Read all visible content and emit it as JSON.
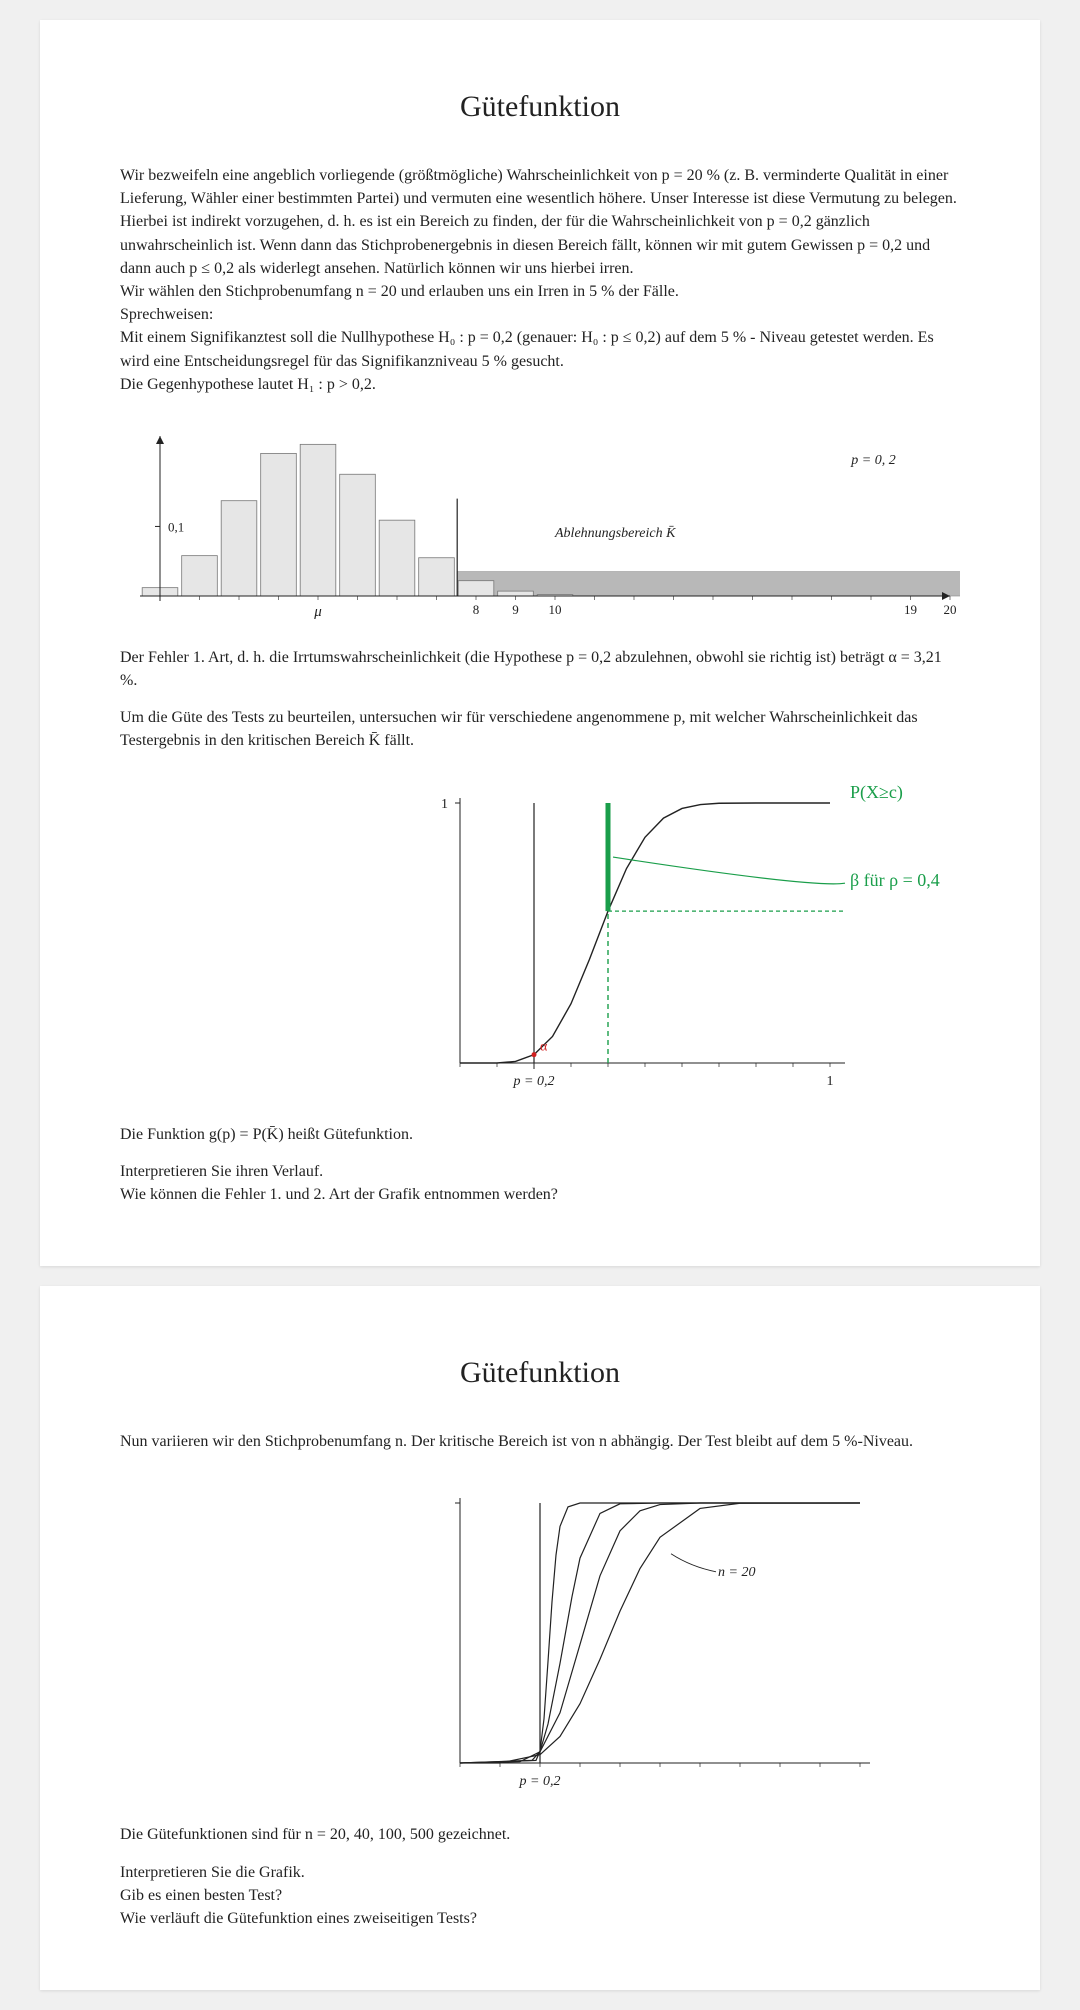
{
  "page1": {
    "title": "Gütefunktion",
    "para1": "Wir bezweifeln eine angeblich vorliegende (größtmögliche) Wahrscheinlichkeit von p = 20 % (z. B. verminderte Qualität in einer Lieferung, Wähler einer bestimmten Partei) und vermuten eine wesentlich höhere. Unser Interesse ist diese Vermutung zu belegen. Hierbei ist indirekt vorzugehen, d. h. es ist ein Bereich zu finden, der für die Wahrscheinlichkeit von p = 0,2 gänzlich unwahrscheinlich ist. Wenn dann das Stichprobenergebnis in diesen Bereich fällt, können wir mit gutem Gewissen p = 0,2 und dann auch p ≤ 0,2 als widerlegt ansehen. Natürlich können wir uns hierbei irren.",
    "para2": "Wir wählen den Stichprobenumfang n = 20 und erlauben uns ein Irren in 5 % der Fälle.",
    "para3": "Sprechweisen:",
    "para4": "Mit einem Signifikanztest soll die Nullhypothese H₀ : p = 0,2 (genauer: H₀ : p ≤ 0,2) auf dem 5 % - Niveau getestet werden. Es wird eine Entscheidungsregel für das Signifikanzniveau 5 % gesucht.",
    "para5": "Die Gegenhypothese lautet H₁ : p > 0,2.",
    "para6": "Der Fehler 1. Art, d. h. die Irrtumswahrscheinlichkeit (die Hypothese p = 0,2 abzulehnen, obwohl sie richtig ist) beträgt α = 3,21 %.",
    "para7": "Um die Güte des Tests zu beurteilen, untersuchen wir für verschiedene angenommene p, mit welcher Wahrscheinlichkeit das Testergebnis in den kritischen Bereich K̄ fällt.",
    "para8": "Die Funktion  g(p)  =  P(K̄)  heißt Gütefunktion.",
    "para9": "Interpretieren Sie ihren Verlauf.",
    "para10": "Wie können die Fehler 1. und 2. Art der Grafik entnommen werden?"
  },
  "histogram": {
    "y_tick_label": "0,1",
    "y_tick_value": 0.1,
    "mu_label": "μ",
    "x_ticks": [
      8,
      9,
      10,
      19,
      20
    ],
    "rejection_label": "Ablehnungsbereich  K̄",
    "p_label": "p = 0, 2",
    "bars": [
      {
        "x": 0,
        "h": 0.012
      },
      {
        "x": 1,
        "h": 0.058
      },
      {
        "x": 2,
        "h": 0.137
      },
      {
        "x": 3,
        "h": 0.205
      },
      {
        "x": 4,
        "h": 0.218
      },
      {
        "x": 5,
        "h": 0.175
      },
      {
        "x": 6,
        "h": 0.109
      },
      {
        "x": 7,
        "h": 0.055
      },
      {
        "x": 8,
        "h": 0.022
      },
      {
        "x": 9,
        "h": 0.007
      },
      {
        "x": 10,
        "h": 0.002
      }
    ],
    "bar_fill": "#e6e6e6",
    "bar_stroke": "#777777",
    "rejection_fill": "#b8b8b8",
    "rejection_stroke": "#888888",
    "axis_color": "#222222",
    "x_range": [
      0,
      20
    ],
    "y_range": [
      0,
      0.23
    ],
    "critical_x": 8,
    "rejection_band_height": 0.035
  },
  "powercurve": {
    "y_top_label": "1",
    "x_p02_label": "p = 0,2",
    "x_1_label": "1",
    "annotation_top": "P(X≥c)",
    "annotation_beta": "β  für  ρ = 0,4",
    "alpha_label": "α",
    "curve_color": "#222222",
    "green_color": "#1a9e4a",
    "red_color": "#d02020",
    "axis_color": "#222222",
    "p0": 0.2,
    "p_beta": 0.4,
    "x_range": [
      0,
      1
    ],
    "curve_points": [
      {
        "p": 0.0,
        "g": 0.0
      },
      {
        "p": 0.05,
        "g": 0.0
      },
      {
        "p": 0.1,
        "g": 0.0
      },
      {
        "p": 0.15,
        "g": 0.006
      },
      {
        "p": 0.2,
        "g": 0.032
      },
      {
        "p": 0.25,
        "g": 0.102
      },
      {
        "p": 0.3,
        "g": 0.228
      },
      {
        "p": 0.35,
        "g": 0.399
      },
      {
        "p": 0.4,
        "g": 0.584
      },
      {
        "p": 0.45,
        "g": 0.748
      },
      {
        "p": 0.5,
        "g": 0.868
      },
      {
        "p": 0.55,
        "g": 0.942
      },
      {
        "p": 0.6,
        "g": 0.979
      },
      {
        "p": 0.65,
        "g": 0.994
      },
      {
        "p": 0.7,
        "g": 0.999
      },
      {
        "p": 0.8,
        "g": 1.0
      },
      {
        "p": 0.9,
        "g": 1.0
      },
      {
        "p": 1.0,
        "g": 1.0
      }
    ]
  },
  "page2": {
    "title": "Gütefunktion",
    "para1": "Nun variieren wir den Stichprobenumfang n. Der kritische Bereich ist von n abhängig. Der Test bleibt auf dem 5 %-Niveau.",
    "para2": "Die Gütefunktionen sind für n = 20, 40, 100, 500  gezeichnet.",
    "para3": "Interpretieren Sie die Grafik.",
    "para4": "Gib es einen besten Test?",
    "para5": "Wie verläuft die Gütefunktion eines zweiseitigen Tests?"
  },
  "multicurve": {
    "n_label": "n = 20",
    "x_p02_label": "p = 0,2",
    "axis_color": "#222222",
    "curve_color": "#222222",
    "p0": 0.2,
    "curves": [
      [
        {
          "p": 0.0,
          "g": 0.0
        },
        {
          "p": 0.1,
          "g": 0.0
        },
        {
          "p": 0.2,
          "g": 0.032
        },
        {
          "p": 0.25,
          "g": 0.102
        },
        {
          "p": 0.3,
          "g": 0.228
        },
        {
          "p": 0.35,
          "g": 0.399
        },
        {
          "p": 0.4,
          "g": 0.584
        },
        {
          "p": 0.45,
          "g": 0.748
        },
        {
          "p": 0.5,
          "g": 0.868
        },
        {
          "p": 0.6,
          "g": 0.979
        },
        {
          "p": 0.7,
          "g": 0.999
        },
        {
          "p": 1.0,
          "g": 1.0
        }
      ],
      [
        {
          "p": 0.0,
          "g": 0.0
        },
        {
          "p": 0.15,
          "g": 0.005
        },
        {
          "p": 0.2,
          "g": 0.043
        },
        {
          "p": 0.25,
          "g": 0.193
        },
        {
          "p": 0.3,
          "g": 0.456
        },
        {
          "p": 0.35,
          "g": 0.72
        },
        {
          "p": 0.4,
          "g": 0.893
        },
        {
          "p": 0.45,
          "g": 0.97
        },
        {
          "p": 0.5,
          "g": 0.994
        },
        {
          "p": 0.6,
          "g": 1.0
        },
        {
          "p": 1.0,
          "g": 1.0
        }
      ],
      [
        {
          "p": 0.0,
          "g": 0.0
        },
        {
          "p": 0.18,
          "g": 0.01
        },
        {
          "p": 0.2,
          "g": 0.044
        },
        {
          "p": 0.22,
          "g": 0.15
        },
        {
          "p": 0.25,
          "g": 0.383
        },
        {
          "p": 0.28,
          "g": 0.64
        },
        {
          "p": 0.3,
          "g": 0.788
        },
        {
          "p": 0.35,
          "g": 0.96
        },
        {
          "p": 0.4,
          "g": 0.997
        },
        {
          "p": 0.5,
          "g": 1.0
        },
        {
          "p": 1.0,
          "g": 1.0
        }
      ],
      [
        {
          "p": 0.0,
          "g": 0.0
        },
        {
          "p": 0.19,
          "g": 0.01
        },
        {
          "p": 0.2,
          "g": 0.046
        },
        {
          "p": 0.21,
          "g": 0.17
        },
        {
          "p": 0.22,
          "g": 0.39
        },
        {
          "p": 0.23,
          "g": 0.62
        },
        {
          "p": 0.24,
          "g": 0.8
        },
        {
          "p": 0.25,
          "g": 0.91
        },
        {
          "p": 0.27,
          "g": 0.985
        },
        {
          "p": 0.3,
          "g": 1.0
        },
        {
          "p": 1.0,
          "g": 1.0
        }
      ]
    ]
  }
}
